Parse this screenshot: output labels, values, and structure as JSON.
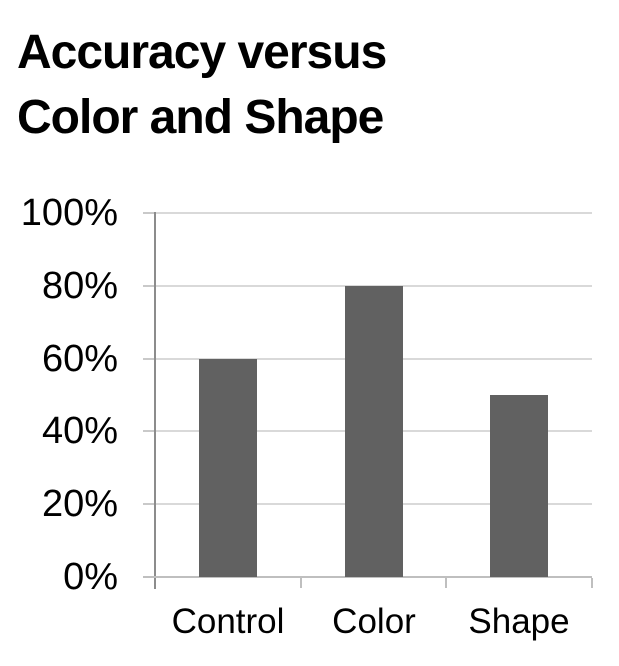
{
  "chart_data": {
    "type": "bar",
    "title": "Accuracy versus Color and Shape",
    "title_lines": [
      "Accuracy versus",
      "Color and Shape"
    ],
    "categories": [
      "Control",
      "Color",
      "Shape"
    ],
    "values": [
      60,
      80,
      50
    ],
    "value_suffix": "%",
    "xlabel": "",
    "ylabel": "",
    "ylim": [
      0,
      100
    ],
    "yticks": [
      0,
      20,
      40,
      60,
      80,
      100
    ],
    "ytick_labels": [
      "0%",
      "20%",
      "40%",
      "60%",
      "80%",
      "100%"
    ],
    "grid": true,
    "legend": false,
    "colors": {
      "bar": "#616161",
      "gridline": "#d9d9d9",
      "value_axis_line": "#8c8c8c",
      "category_axis_line": "#bfbfbf",
      "value_tick": "#c9c9c9",
      "text": "#000000",
      "background": "#ffffff"
    }
  }
}
